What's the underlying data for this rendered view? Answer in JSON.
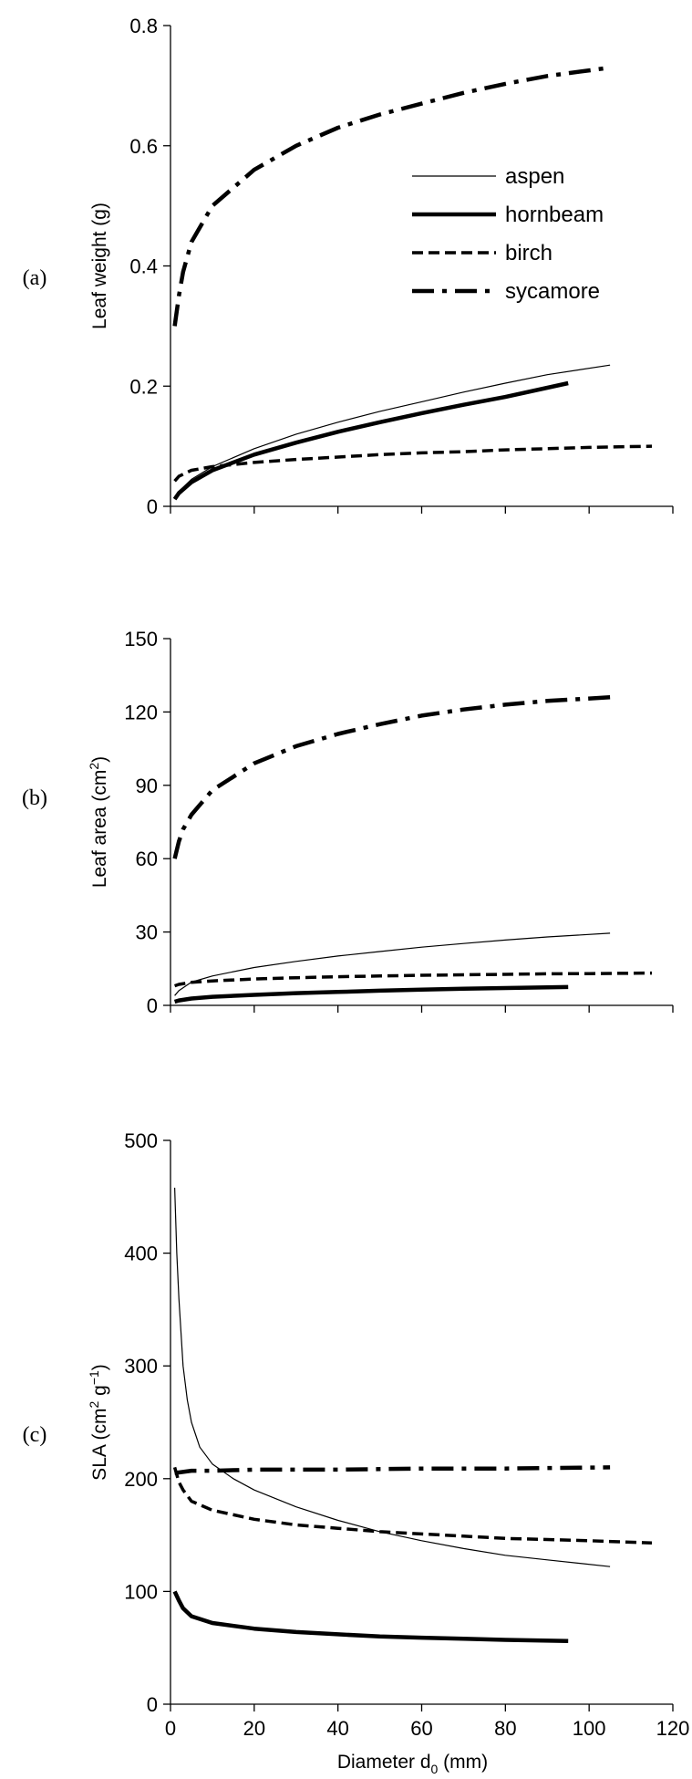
{
  "chart_data": [
    {
      "type": "line",
      "panel_label": "(a)",
      "ylabel": "Leaf weight (g)",
      "xlabel": "",
      "xlim": [
        0,
        120
      ],
      "ylim": [
        0,
        0.8
      ],
      "xticks": [
        0,
        20,
        40,
        60,
        80,
        100,
        120
      ],
      "show_x_tick_labels": false,
      "yticks": [
        "0",
        "0.2",
        "0.4",
        "0.6",
        "0.8"
      ],
      "ytick_values": [
        0,
        0.2,
        0.4,
        0.6,
        0.8
      ],
      "legend": {
        "placement": "upper-right",
        "entries": [
          {
            "name": "aspen",
            "style": "thin"
          },
          {
            "name": "hornbeam",
            "style": "thick"
          },
          {
            "name": "birch",
            "style": "dashed"
          },
          {
            "name": "sycamore",
            "style": "dashdot"
          }
        ]
      },
      "series": [
        {
          "name": "aspen",
          "style": "thin",
          "x": [
            1,
            2,
            5,
            10,
            20,
            30,
            40,
            50,
            60,
            70,
            80,
            90,
            105
          ],
          "y": [
            0.012,
            0.025,
            0.045,
            0.066,
            0.096,
            0.12,
            0.14,
            0.158,
            0.174,
            0.19,
            0.205,
            0.219,
            0.235
          ]
        },
        {
          "name": "hornbeam",
          "style": "thick",
          "x": [
            1,
            2,
            5,
            10,
            20,
            30,
            40,
            50,
            60,
            70,
            80,
            95
          ],
          "y": [
            0.012,
            0.022,
            0.04,
            0.06,
            0.086,
            0.106,
            0.124,
            0.14,
            0.155,
            0.169,
            0.182,
            0.205
          ]
        },
        {
          "name": "birch",
          "style": "dashed",
          "x": [
            1,
            2,
            5,
            10,
            20,
            30,
            40,
            50,
            60,
            70,
            80,
            90,
            100,
            115
          ],
          "y": [
            0.042,
            0.05,
            0.06,
            0.066,
            0.073,
            0.078,
            0.082,
            0.086,
            0.089,
            0.091,
            0.094,
            0.096,
            0.098,
            0.1
          ]
        },
        {
          "name": "sycamore",
          "style": "dashdot",
          "x": [
            1,
            2,
            3,
            5,
            10,
            20,
            30,
            40,
            50,
            60,
            70,
            80,
            90,
            105
          ],
          "y": [
            0.3,
            0.35,
            0.39,
            0.44,
            0.5,
            0.56,
            0.6,
            0.63,
            0.652,
            0.67,
            0.688,
            0.703,
            0.716,
            0.73
          ]
        }
      ]
    },
    {
      "type": "line",
      "panel_label": "(b)",
      "ylabel": "Leaf area (cm",
      "ylabel_sup": "2",
      "ylabel_end": ")",
      "xlabel": "",
      "xlim": [
        0,
        120
      ],
      "ylim": [
        0,
        150
      ],
      "xticks": [
        0,
        20,
        40,
        60,
        80,
        100,
        120
      ],
      "show_x_tick_labels": false,
      "yticks": [
        "0",
        "30",
        "60",
        "90",
        "120",
        "150"
      ],
      "ytick_values": [
        0,
        30,
        60,
        90,
        120,
        150
      ],
      "series": [
        {
          "name": "aspen",
          "style": "thin",
          "x": [
            1,
            2,
            5,
            10,
            20,
            30,
            40,
            50,
            60,
            70,
            80,
            90,
            105
          ],
          "y": [
            4,
            6,
            9.5,
            12,
            15.5,
            18,
            20.2,
            22,
            23.8,
            25.3,
            26.7,
            28,
            29.5
          ]
        },
        {
          "name": "hornbeam",
          "style": "thick",
          "x": [
            1,
            2,
            5,
            10,
            20,
            30,
            40,
            50,
            60,
            70,
            80,
            95
          ],
          "y": [
            1.5,
            2,
            2.8,
            3.5,
            4.3,
            5,
            5.5,
            6,
            6.4,
            6.8,
            7.1,
            7.5
          ]
        },
        {
          "name": "birch",
          "style": "dashed",
          "x": [
            1,
            2,
            5,
            10,
            20,
            30,
            40,
            50,
            60,
            70,
            80,
            90,
            100,
            115
          ],
          "y": [
            8,
            8.6,
            9.4,
            10,
            10.8,
            11.3,
            11.7,
            12,
            12.3,
            12.5,
            12.7,
            12.9,
            13,
            13.2
          ]
        },
        {
          "name": "sycamore",
          "style": "dashdot",
          "x": [
            1,
            2,
            3,
            5,
            10,
            20,
            30,
            40,
            50,
            60,
            70,
            80,
            90,
            105
          ],
          "y": [
            60,
            67,
            72,
            78,
            88,
            99,
            106,
            111,
            115,
            118.5,
            121,
            123,
            124.5,
            126
          ]
        }
      ]
    },
    {
      "type": "line",
      "panel_label": "(c)",
      "ylabel": "SLA (cm",
      "ylabel_sup": "2",
      "ylabel_mid": " g",
      "ylabel_sup2": "−1",
      "ylabel_end": ")",
      "xlabel": "Diameter d",
      "xlabel_sub": "0",
      "xlabel_end": " (mm)",
      "xlim": [
        0,
        120
      ],
      "ylim": [
        0,
        500
      ],
      "xticks": [
        0,
        20,
        40,
        60,
        80,
        100,
        120
      ],
      "xtick_labels": [
        "0",
        "20",
        "40",
        "60",
        "80",
        "100",
        "120"
      ],
      "show_x_tick_labels": true,
      "yticks": [
        "0",
        "100",
        "200",
        "300",
        "400",
        "500"
      ],
      "ytick_values": [
        0,
        100,
        200,
        300,
        400,
        500
      ],
      "series": [
        {
          "name": "aspen",
          "style": "thin",
          "x": [
            1,
            1.5,
            2,
            3,
            4,
            5,
            7,
            10,
            15,
            20,
            30,
            40,
            50,
            60,
            70,
            80,
            90,
            105
          ],
          "y": [
            458,
            400,
            360,
            300,
            270,
            250,
            228,
            213,
            200,
            190,
            175,
            163,
            153,
            145,
            138,
            132,
            128,
            122
          ]
        },
        {
          "name": "hornbeam",
          "style": "thick",
          "x": [
            1,
            2,
            3,
            5,
            10,
            20,
            30,
            40,
            50,
            60,
            70,
            80,
            95
          ],
          "y": [
            100,
            92,
            85,
            78,
            72,
            67,
            64,
            62,
            60,
            59,
            58,
            57,
            56
          ]
        },
        {
          "name": "birch",
          "style": "dashed",
          "x": [
            1,
            2,
            3,
            5,
            10,
            20,
            30,
            40,
            50,
            60,
            70,
            80,
            90,
            100,
            115
          ],
          "y": [
            210,
            197,
            190,
            180,
            172,
            164,
            159,
            156,
            153,
            151,
            149,
            147,
            146,
            145,
            143
          ]
        },
        {
          "name": "sycamore",
          "style": "dashdot",
          "x": [
            1,
            3,
            5,
            10,
            20,
            40,
            60,
            80,
            105
          ],
          "y": [
            205,
            206,
            207,
            207,
            208,
            208,
            209,
            209,
            210
          ]
        }
      ]
    }
  ]
}
